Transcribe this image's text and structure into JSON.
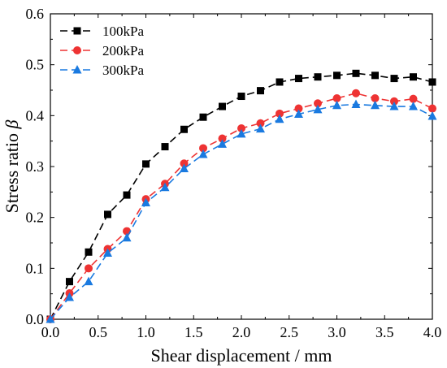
{
  "chart_data": {
    "type": "line",
    "xlabel": "Shear displacement / mm",
    "ylabel": "Stress ratio ",
    "ylabel_symbol": "β",
    "xlim": [
      0.0,
      4.0
    ],
    "ylim": [
      0.0,
      0.6
    ],
    "xticks": [
      "0.0",
      "0.5",
      "1.0",
      "1.5",
      "2.0",
      "2.5",
      "3.0",
      "3.5",
      "4.0"
    ],
    "yticks": [
      "0.0",
      "0.1",
      "0.2",
      "0.3",
      "0.4",
      "0.5",
      "0.6"
    ],
    "grid": false,
    "legend_position": "top-left",
    "series": [
      {
        "name": "100kPa",
        "color": "#000000",
        "marker": "square",
        "line_style": "dashed",
        "x": [
          0.0,
          0.2,
          0.4,
          0.6,
          0.8,
          1.0,
          1.2,
          1.4,
          1.6,
          1.8,
          2.0,
          2.2,
          2.4,
          2.6,
          2.8,
          3.0,
          3.2,
          3.4,
          3.6,
          3.8,
          4.0
        ],
        "y": [
          0.0,
          0.074,
          0.132,
          0.206,
          0.244,
          0.305,
          0.339,
          0.373,
          0.397,
          0.418,
          0.438,
          0.449,
          0.466,
          0.473,
          0.476,
          0.479,
          0.483,
          0.479,
          0.473,
          0.476,
          0.466
        ]
      },
      {
        "name": "200kPa",
        "color": "#ee3333",
        "marker": "circle",
        "line_style": "dashed",
        "x": [
          0.0,
          0.2,
          0.4,
          0.6,
          0.8,
          1.0,
          1.2,
          1.4,
          1.6,
          1.8,
          2.0,
          2.2,
          2.4,
          2.6,
          2.8,
          3.0,
          3.2,
          3.4,
          3.6,
          3.8,
          4.0
        ],
        "y": [
          0.0,
          0.051,
          0.1,
          0.138,
          0.173,
          0.236,
          0.266,
          0.306,
          0.336,
          0.355,
          0.375,
          0.385,
          0.404,
          0.414,
          0.424,
          0.434,
          0.444,
          0.434,
          0.428,
          0.433,
          0.414
        ]
      },
      {
        "name": "300kPa",
        "color": "#1a7ae0",
        "marker": "triangle",
        "line_style": "dashed",
        "x": [
          0.0,
          0.2,
          0.4,
          0.6,
          0.8,
          1.0,
          1.2,
          1.4,
          1.6,
          1.8,
          2.0,
          2.2,
          2.4,
          2.6,
          2.8,
          3.0,
          3.2,
          3.4,
          3.6,
          3.8,
          4.0
        ],
        "y": [
          0.0,
          0.043,
          0.074,
          0.13,
          0.16,
          0.229,
          0.259,
          0.296,
          0.324,
          0.344,
          0.364,
          0.374,
          0.393,
          0.403,
          0.412,
          0.42,
          0.422,
          0.42,
          0.418,
          0.418,
          0.399
        ]
      }
    ]
  }
}
